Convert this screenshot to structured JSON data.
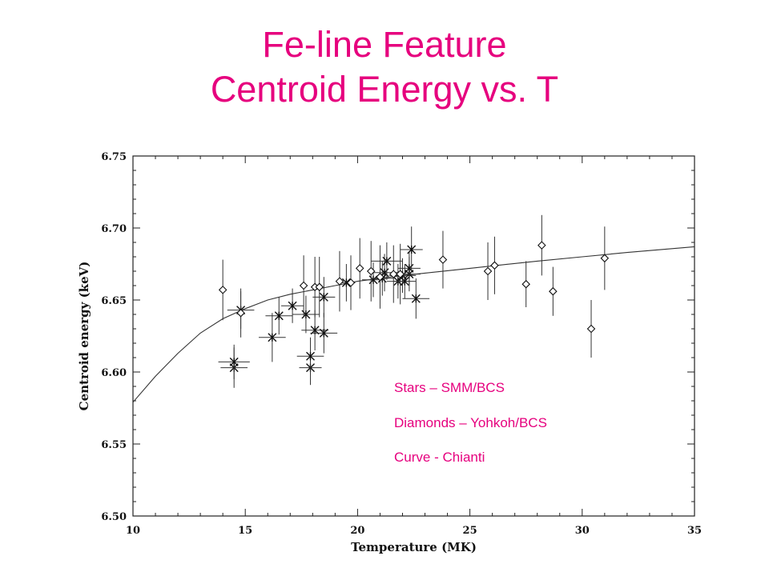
{
  "slide": {
    "title_line1": "Fe-line Feature",
    "title_line2": "Centroid Energy vs. T",
    "accent_color": "#e6007e"
  },
  "notes": [
    "Stars – SMM/BCS",
    "Diamonds – Yohkoh/BCS",
    "Curve - Chianti"
  ],
  "chart_data": {
    "type": "scatter",
    "xlabel": "Temperature (MK)",
    "ylabel": "Centroid energy (keV)",
    "xlim": [
      10,
      35
    ],
    "ylim": [
      6.5,
      6.75
    ],
    "xticks": [
      10,
      15,
      20,
      25,
      30,
      35
    ],
    "yticks": [
      6.5,
      6.55,
      6.6,
      6.65,
      6.7,
      6.75
    ],
    "grid": false,
    "series": [
      {
        "marker": "star",
        "points": [
          {
            "x": 14.5,
            "y": 6.603,
            "yerr": 0.014,
            "xerr": 0.6
          },
          {
            "x": 14.5,
            "y": 6.607,
            "yerr": 0.012,
            "xerr": 0.7
          },
          {
            "x": 14.8,
            "y": 6.643,
            "yerr": 0.013,
            "xerr": 0.6
          },
          {
            "x": 16.2,
            "y": 6.624,
            "yerr": 0.017,
            "xerr": 0.6
          },
          {
            "x": 16.5,
            "y": 6.639,
            "yerr": 0.013,
            "xerr": 0.6
          },
          {
            "x": 17.1,
            "y": 6.646,
            "yerr": 0.012,
            "xerr": 0.5
          },
          {
            "x": 17.7,
            "y": 6.64,
            "yerr": 0.013,
            "xerr": 0.6
          },
          {
            "x": 17.9,
            "y": 6.603,
            "yerr": 0.012,
            "xerr": 0.5
          },
          {
            "x": 17.9,
            "y": 6.611,
            "yerr": 0.013,
            "xerr": 0.6
          },
          {
            "x": 18.1,
            "y": 6.629,
            "yerr": 0.014,
            "xerr": 0.6
          },
          {
            "x": 18.5,
            "y": 6.627,
            "yerr": 0.014,
            "xerr": 0.6
          },
          {
            "x": 18.5,
            "y": 6.652,
            "yerr": 0.014,
            "xerr": 0.5
          },
          {
            "x": 19.5,
            "y": 6.662,
            "yerr": 0.013,
            "xerr": 0.4
          },
          {
            "x": 20.7,
            "y": 6.664,
            "yerr": 0.012,
            "xerr": 0.5
          },
          {
            "x": 21.1,
            "y": 6.665,
            "yerr": 0.012,
            "xerr": 0.5
          },
          {
            "x": 21.2,
            "y": 6.669,
            "yerr": 0.013,
            "xerr": 0.6
          },
          {
            "x": 21.3,
            "y": 6.677,
            "yerr": 0.013,
            "xerr": 0.7
          },
          {
            "x": 21.8,
            "y": 6.663,
            "yerr": 0.012,
            "xerr": 0.5
          },
          {
            "x": 22.0,
            "y": 6.667,
            "yerr": 0.012,
            "xerr": 0.6
          },
          {
            "x": 22.1,
            "y": 6.663,
            "yerr": 0.012,
            "xerr": 0.5
          },
          {
            "x": 22.3,
            "y": 6.668,
            "yerr": 0.012,
            "xerr": 0.5
          },
          {
            "x": 22.3,
            "y": 6.672,
            "yerr": 0.012,
            "xerr": 0.5
          },
          {
            "x": 22.4,
            "y": 6.685,
            "yerr": 0.016,
            "xerr": 0.5
          },
          {
            "x": 22.6,
            "y": 6.651,
            "yerr": 0.014,
            "xerr": 0.6
          }
        ]
      },
      {
        "marker": "diamond",
        "points": [
          {
            "x": 14.0,
            "y": 6.657,
            "yerr": 0.021
          },
          {
            "x": 14.8,
            "y": 6.641,
            "yerr": 0.017
          },
          {
            "x": 17.6,
            "y": 6.66,
            "yerr": 0.021
          },
          {
            "x": 18.1,
            "y": 6.659,
            "yerr": 0.021
          },
          {
            "x": 18.3,
            "y": 6.659,
            "yerr": 0.021
          },
          {
            "x": 19.2,
            "y": 6.663,
            "yerr": 0.021
          },
          {
            "x": 19.7,
            "y": 6.662,
            "yerr": 0.019
          },
          {
            "x": 20.1,
            "y": 6.672,
            "yerr": 0.021
          },
          {
            "x": 20.6,
            "y": 6.67,
            "yerr": 0.021
          },
          {
            "x": 21.0,
            "y": 6.666,
            "yerr": 0.022
          },
          {
            "x": 21.6,
            "y": 6.668,
            "yerr": 0.02
          },
          {
            "x": 21.9,
            "y": 6.668,
            "yerr": 0.021
          },
          {
            "x": 23.8,
            "y": 6.678,
            "yerr": 0.02
          },
          {
            "x": 25.8,
            "y": 6.67,
            "yerr": 0.02
          },
          {
            "x": 26.1,
            "y": 6.674,
            "yerr": 0.02
          },
          {
            "x": 27.5,
            "y": 6.661,
            "yerr": 0.016
          },
          {
            "x": 28.2,
            "y": 6.688,
            "yerr": 0.021
          },
          {
            "x": 28.7,
            "y": 6.656,
            "yerr": 0.017
          },
          {
            "x": 30.4,
            "y": 6.63,
            "yerr": 0.02
          },
          {
            "x": 31.0,
            "y": 6.679,
            "yerr": 0.022
          }
        ]
      },
      {
        "marker": "line",
        "x": [
          10,
          11,
          12,
          13,
          14,
          15,
          16,
          17,
          18,
          19,
          20,
          22,
          25,
          28,
          30,
          32,
          35
        ],
        "y": [
          6.579,
          6.597,
          6.613,
          6.627,
          6.637,
          6.644,
          6.65,
          6.654,
          6.657,
          6.66,
          6.663,
          6.667,
          6.672,
          6.677,
          6.68,
          6.683,
          6.687
        ]
      }
    ]
  }
}
